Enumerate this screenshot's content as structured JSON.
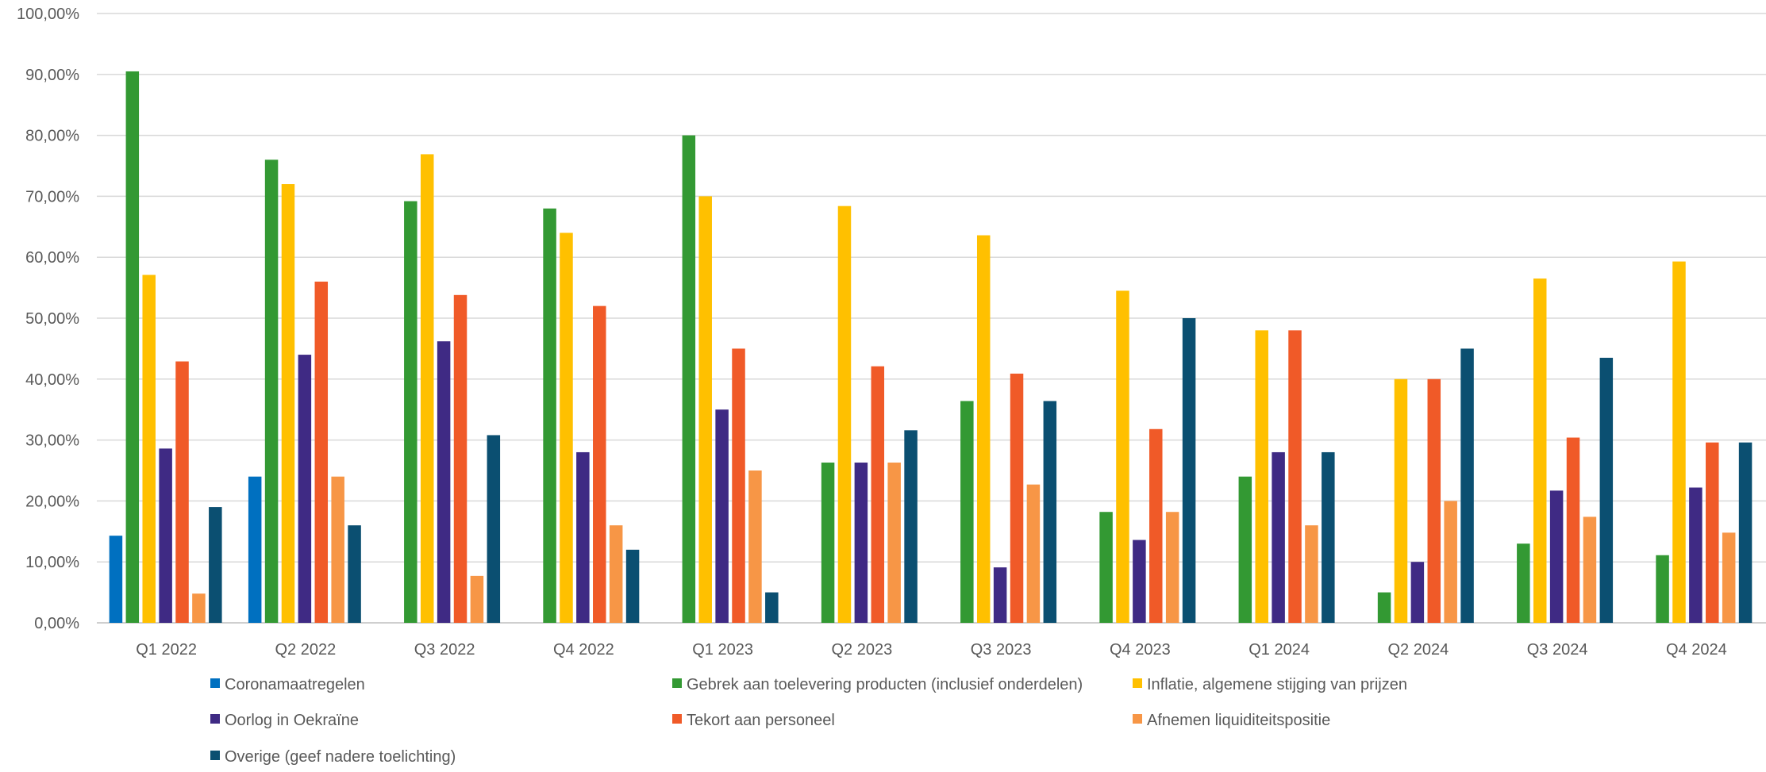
{
  "chart_data": {
    "type": "bar",
    "categories": [
      "Q1 2022",
      "Q2 2022",
      "Q3 2022",
      "Q4 2022",
      "Q1 2023",
      "Q2 2023",
      "Q3 2023",
      "Q4 2023",
      "Q1 2024",
      "Q2 2024",
      "Q3 2024",
      "Q4 2024"
    ],
    "y_ticks": [
      "0,00%",
      "10,00%",
      "20,00%",
      "30,00%",
      "40,00%",
      "50,00%",
      "60,00%",
      "70,00%",
      "80,00%",
      "90,00%",
      "100,00%"
    ],
    "ylim": [
      0,
      100
    ],
    "grid": true,
    "legend_position": "bottom",
    "series": [
      {
        "name": "Coronamaatregelen",
        "color": "#0070C0",
        "values": [
          14.3,
          24,
          0,
          0,
          0,
          0,
          0,
          0,
          0,
          0,
          0,
          0
        ]
      },
      {
        "name": "Gebrek aan toelevering producten (inclusief onderdelen)",
        "color": "#339933",
        "values": [
          90.5,
          76,
          69.2,
          68,
          80,
          26.3,
          36.4,
          18.2,
          24,
          5,
          13,
          11.1
        ]
      },
      {
        "name": "Inflatie, algemene stijging van prijzen",
        "color": "#FFC000",
        "values": [
          57.1,
          72,
          76.9,
          64,
          70,
          68.4,
          63.6,
          54.5,
          48,
          40,
          56.5,
          59.3
        ]
      },
      {
        "name": "Oorlog in Oekraïne",
        "color": "#3F2A84",
        "values": [
          28.6,
          44,
          46.2,
          28,
          35,
          26.3,
          9.1,
          13.6,
          28,
          10,
          21.7,
          22.2
        ]
      },
      {
        "name": "Tekort aan personeel",
        "color": "#F05A28",
        "values": [
          42.9,
          56,
          53.8,
          52,
          45,
          42.1,
          40.9,
          31.8,
          48,
          40,
          30.4,
          29.6
        ]
      },
      {
        "name": "Afnemen liquiditeitspositie",
        "color": "#F79646",
        "values": [
          4.8,
          24,
          7.7,
          16,
          25,
          26.3,
          22.7,
          18.2,
          16,
          20,
          17.4,
          14.8
        ]
      },
      {
        "name": "Overige (geef nadere toelichting)",
        "color": "#0B4F71",
        "values": [
          19,
          16,
          30.8,
          12,
          5,
          31.6,
          36.4,
          50,
          28,
          45,
          43.5,
          29.6
        ]
      }
    ]
  }
}
